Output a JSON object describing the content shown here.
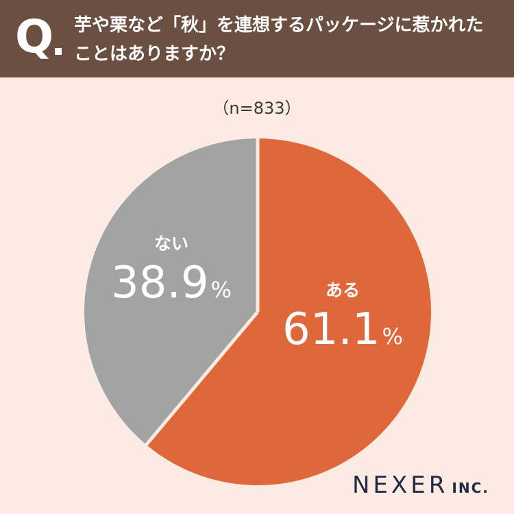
{
  "header": {
    "q_mark": "Q",
    "question_line1": "芋や栗など「秋」を連想するパッケージに惹かれた",
    "question_line2": "ことはありますか？"
  },
  "sample_size": "（n=833）",
  "chart_data": {
    "type": "pie",
    "title": "",
    "slices": [
      {
        "label": "ある",
        "value": 61.1,
        "value_text": "61.1",
        "unit": "%",
        "color": "#e0673a"
      },
      {
        "label": "ない",
        "value": 38.9,
        "value_text": "38.9",
        "unit": "%",
        "color": "#a3a3a3"
      }
    ],
    "start": "12 o'clock",
    "direction": "clockwise"
  },
  "brand": {
    "main": "NEXER",
    "sub": "INC."
  },
  "colors": {
    "header_bg": "#6b4f40",
    "page_bg": "#fbebe3",
    "separator": "#fbebe3",
    "label_text": "#ffffff"
  }
}
